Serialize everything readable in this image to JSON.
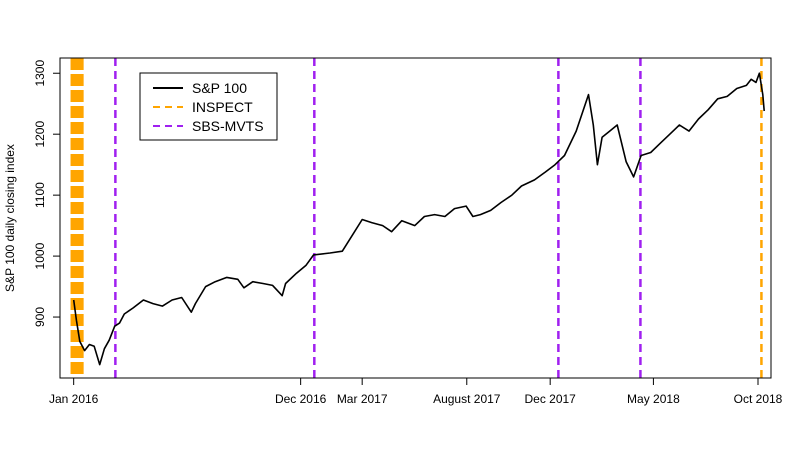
{
  "chart_data": {
    "type": "line",
    "title": "",
    "xlabel": "",
    "ylabel": "S&P 100 daily closing index",
    "x_range": [
      "2015-12-15",
      "2018-10-20"
    ],
    "ylim": [
      800,
      1325
    ],
    "x_ticks": [
      {
        "date": "2016-01-04",
        "label": "Jan 2016"
      },
      {
        "date": "2016-12-01",
        "label": "Dec 2016"
      },
      {
        "date": "2017-03-01",
        "label": "Mar 2017"
      },
      {
        "date": "2017-08-01",
        "label": "August 2017"
      },
      {
        "date": "2017-12-01",
        "label": "Dec 2017"
      },
      {
        "date": "2018-05-01",
        "label": "May 2018"
      },
      {
        "date": "2018-10-01",
        "label": "Oct 2018"
      }
    ],
    "y_ticks": [
      900,
      1000,
      1100,
      1200,
      1300
    ],
    "grid": false,
    "legend": {
      "position": "top-left",
      "entries": [
        {
          "name": "S&P 100",
          "color": "#000000",
          "style": "solid"
        },
        {
          "name": "INSPECT",
          "color": "#FFA500",
          "style": "dashed"
        },
        {
          "name": "SBS-MVTS",
          "color": "#A020F0",
          "style": "dashed"
        }
      ]
    },
    "series": [
      {
        "name": "S&P 100",
        "color": "#000000",
        "points": [
          [
            "2016-01-04",
            928
          ],
          [
            "2016-01-08",
            895
          ],
          [
            "2016-01-13",
            860
          ],
          [
            "2016-01-20",
            845
          ],
          [
            "2016-01-27",
            855
          ],
          [
            "2016-02-03",
            852
          ],
          [
            "2016-02-11",
            822
          ],
          [
            "2016-02-18",
            848
          ],
          [
            "2016-02-25",
            862
          ],
          [
            "2016-03-04",
            885
          ],
          [
            "2016-03-11",
            890
          ],
          [
            "2016-03-18",
            905
          ],
          [
            "2016-03-31",
            915
          ],
          [
            "2016-04-15",
            928
          ],
          [
            "2016-04-29",
            922
          ],
          [
            "2016-05-13",
            918
          ],
          [
            "2016-05-27",
            928
          ],
          [
            "2016-06-10",
            932
          ],
          [
            "2016-06-24",
            908
          ],
          [
            "2016-06-30",
            922
          ],
          [
            "2016-07-15",
            950
          ],
          [
            "2016-07-29",
            958
          ],
          [
            "2016-08-15",
            965
          ],
          [
            "2016-08-31",
            962
          ],
          [
            "2016-09-09",
            948
          ],
          [
            "2016-09-22",
            958
          ],
          [
            "2016-10-07",
            955
          ],
          [
            "2016-10-21",
            952
          ],
          [
            "2016-11-04",
            935
          ],
          [
            "2016-11-09",
            955
          ],
          [
            "2016-11-25",
            972
          ],
          [
            "2016-12-09",
            985
          ],
          [
            "2016-12-20",
            1002
          ],
          [
            "2017-01-13",
            1005
          ],
          [
            "2017-01-31",
            1008
          ],
          [
            "2017-02-15",
            1035
          ],
          [
            "2017-03-01",
            1060
          ],
          [
            "2017-03-15",
            1055
          ],
          [
            "2017-03-31",
            1050
          ],
          [
            "2017-04-13",
            1040
          ],
          [
            "2017-04-28",
            1058
          ],
          [
            "2017-05-17",
            1050
          ],
          [
            "2017-05-31",
            1065
          ],
          [
            "2017-06-15",
            1068
          ],
          [
            "2017-06-30",
            1065
          ],
          [
            "2017-07-14",
            1078
          ],
          [
            "2017-07-31",
            1082
          ],
          [
            "2017-08-10",
            1065
          ],
          [
            "2017-08-21",
            1068
          ],
          [
            "2017-09-05",
            1075
          ],
          [
            "2017-09-20",
            1088
          ],
          [
            "2017-10-06",
            1100
          ],
          [
            "2017-10-20",
            1115
          ],
          [
            "2017-11-08",
            1125
          ],
          [
            "2017-11-24",
            1138
          ],
          [
            "2017-12-08",
            1150
          ],
          [
            "2017-12-22",
            1165
          ],
          [
            "2018-01-08",
            1205
          ],
          [
            "2018-01-26",
            1265
          ],
          [
            "2018-02-02",
            1215
          ],
          [
            "2018-02-08",
            1150
          ],
          [
            "2018-02-15",
            1195
          ],
          [
            "2018-02-26",
            1205
          ],
          [
            "2018-03-09",
            1215
          ],
          [
            "2018-03-22",
            1155
          ],
          [
            "2018-04-02",
            1130
          ],
          [
            "2018-04-13",
            1165
          ],
          [
            "2018-04-27",
            1170
          ],
          [
            "2018-05-11",
            1185
          ],
          [
            "2018-05-25",
            1200
          ],
          [
            "2018-06-08",
            1215
          ],
          [
            "2018-06-22",
            1205
          ],
          [
            "2018-07-06",
            1225
          ],
          [
            "2018-07-20",
            1240
          ],
          [
            "2018-08-03",
            1258
          ],
          [
            "2018-08-17",
            1262
          ],
          [
            "2018-08-31",
            1275
          ],
          [
            "2018-09-14",
            1280
          ],
          [
            "2018-09-21",
            1290
          ],
          [
            "2018-09-28",
            1285
          ],
          [
            "2018-10-03",
            1300
          ],
          [
            "2018-10-08",
            1265
          ],
          [
            "2018-10-10",
            1238
          ]
        ]
      }
    ],
    "vertical_lines": [
      {
        "series": "INSPECT",
        "date": "2016-01-06",
        "color": "#FFA500",
        "style": "heavy-dashed"
      },
      {
        "series": "INSPECT",
        "date": "2016-01-12",
        "color": "#FFA500",
        "style": "heavy-dashed"
      },
      {
        "series": "INSPECT",
        "date": "2018-10-06",
        "color": "#FFA500",
        "style": "dashed"
      },
      {
        "series": "SBS-MVTS",
        "date": "2016-03-05",
        "color": "#A020F0",
        "style": "dashed"
      },
      {
        "series": "SBS-MVTS",
        "date": "2016-12-21",
        "color": "#A020F0",
        "style": "dashed"
      },
      {
        "series": "SBS-MVTS",
        "date": "2017-12-13",
        "color": "#A020F0",
        "style": "dashed"
      },
      {
        "series": "SBS-MVTS",
        "date": "2018-04-12",
        "color": "#A020F0",
        "style": "dashed"
      }
    ]
  }
}
